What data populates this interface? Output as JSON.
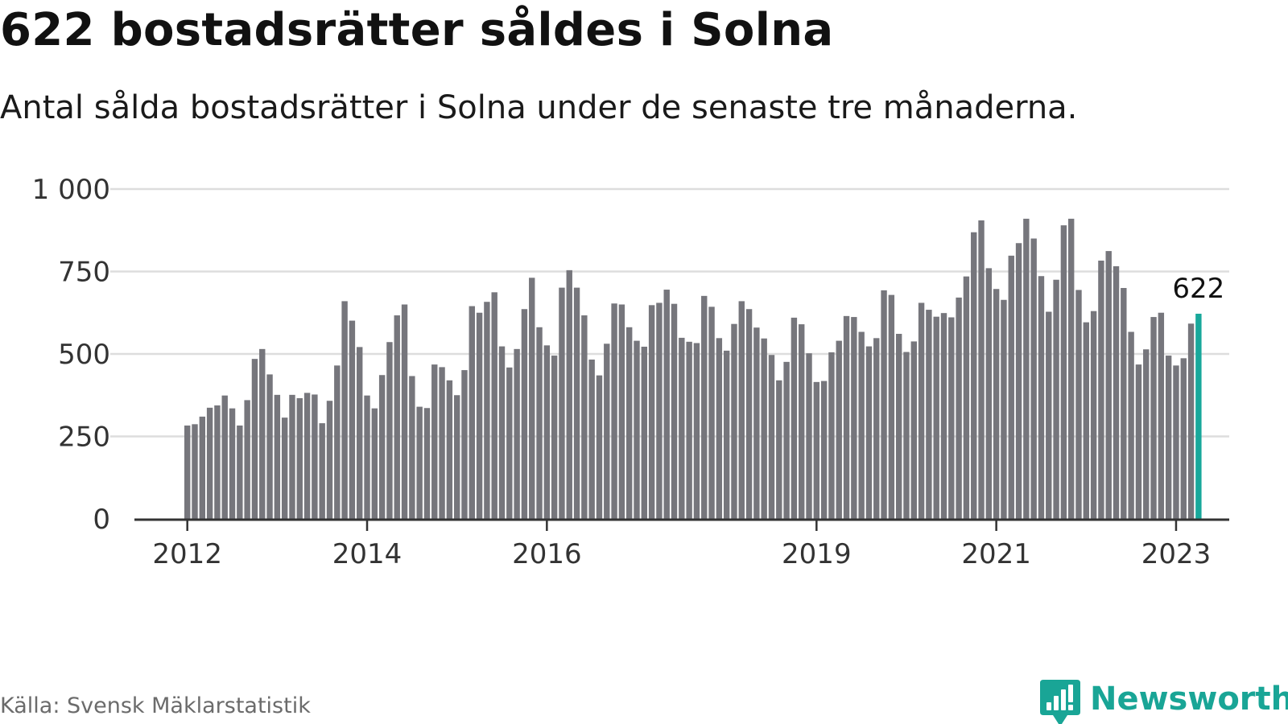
{
  "title": "622 bostadsrätter såldes i Solna",
  "subtitle": "Antal sålda bostadsrätter i Solna under de senaste tre månaderna.",
  "source": "Källa: Svensk Mäklarstatistik",
  "brand": "Newsworthy",
  "colors": {
    "bar": "#76767c",
    "highlight": "#18a89b",
    "grid": "#dddddd",
    "axis": "#333333",
    "brand": "#19a596"
  },
  "chart_data": {
    "type": "bar",
    "ylim": [
      0,
      1000
    ],
    "y_ticks": [
      0,
      250,
      500,
      750,
      1000
    ],
    "y_tick_labels": [
      "0",
      "250",
      "500",
      "750",
      "1 000"
    ],
    "x_tick_labels": [
      {
        "label": "2012",
        "index": 0
      },
      {
        "label": "2014",
        "index": 24
      },
      {
        "label": "2016",
        "index": 48
      },
      {
        "label": "2019",
        "index": 84
      },
      {
        "label": "2021",
        "index": 108
      },
      {
        "label": "2023",
        "index": 132
      }
    ],
    "first_period": "2012-01",
    "highlight_label": "622",
    "values": [
      283,
      287,
      310,
      337,
      344,
      374,
      335,
      283,
      360,
      485,
      515,
      438,
      376,
      307,
      376,
      366,
      382,
      377,
      290,
      358,
      465,
      660,
      601,
      521,
      374,
      335,
      436,
      536,
      617,
      650,
      433,
      340,
      336,
      468,
      460,
      420,
      375,
      451,
      645,
      625,
      658,
      687,
      523,
      459,
      515,
      636,
      731,
      581,
      526,
      495,
      701,
      754,
      701,
      617,
      483,
      435,
      531,
      653,
      650,
      581,
      540,
      522,
      648,
      655,
      695,
      652,
      549,
      537,
      533,
      676,
      643,
      548,
      510,
      591,
      660,
      636,
      580,
      547,
      497,
      420,
      476,
      610,
      590,
      502,
      415,
      418,
      505,
      540,
      615,
      612,
      567,
      523,
      548,
      693,
      679,
      561,
      506,
      538,
      655,
      634,
      613,
      624,
      611,
      671,
      735,
      869,
      905,
      760,
      697,
      664,
      798,
      836,
      910,
      850,
      736,
      628,
      725,
      890,
      910,
      694,
      596,
      630,
      783,
      812,
      766,
      700,
      567,
      468,
      514,
      612,
      625,
      495,
      465,
      487,
      592,
      622
    ]
  }
}
